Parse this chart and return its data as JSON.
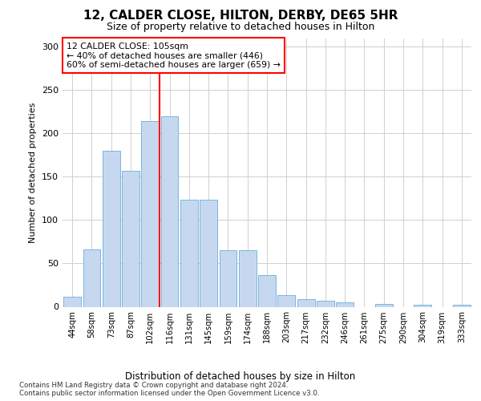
{
  "title": "12, CALDER CLOSE, HILTON, DERBY, DE65 5HR",
  "subtitle": "Size of property relative to detached houses in Hilton",
  "xlabel": "Distribution of detached houses by size in Hilton",
  "ylabel": "Number of detached properties",
  "bar_labels": [
    "44sqm",
    "58sqm",
    "73sqm",
    "87sqm",
    "102sqm",
    "116sqm",
    "131sqm",
    "145sqm",
    "159sqm",
    "174sqm",
    "188sqm",
    "203sqm",
    "217sqm",
    "232sqm",
    "246sqm",
    "261sqm",
    "275sqm",
    "290sqm",
    "304sqm",
    "319sqm",
    "333sqm"
  ],
  "bar_values": [
    12,
    66,
    180,
    157,
    214,
    220,
    124,
    124,
    65,
    65,
    37,
    13,
    9,
    7,
    5,
    0,
    3,
    0,
    2,
    0,
    2
  ],
  "bar_color": "#c5d8f0",
  "bar_edge_color": "#6baed6",
  "vline_x": 4.5,
  "vline_color": "red",
  "annotation_text": "12 CALDER CLOSE: 105sqm\n← 40% of detached houses are smaller (446)\n60% of semi-detached houses are larger (659) →",
  "annotation_box_color": "white",
  "annotation_box_edge": "red",
  "ylim": [
    0,
    310
  ],
  "yticks": [
    0,
    50,
    100,
    150,
    200,
    250,
    300
  ],
  "footer": "Contains HM Land Registry data © Crown copyright and database right 2024.\nContains public sector information licensed under the Open Government Licence v3.0.",
  "bg_color": "white",
  "grid_color": "#d0d0d0"
}
